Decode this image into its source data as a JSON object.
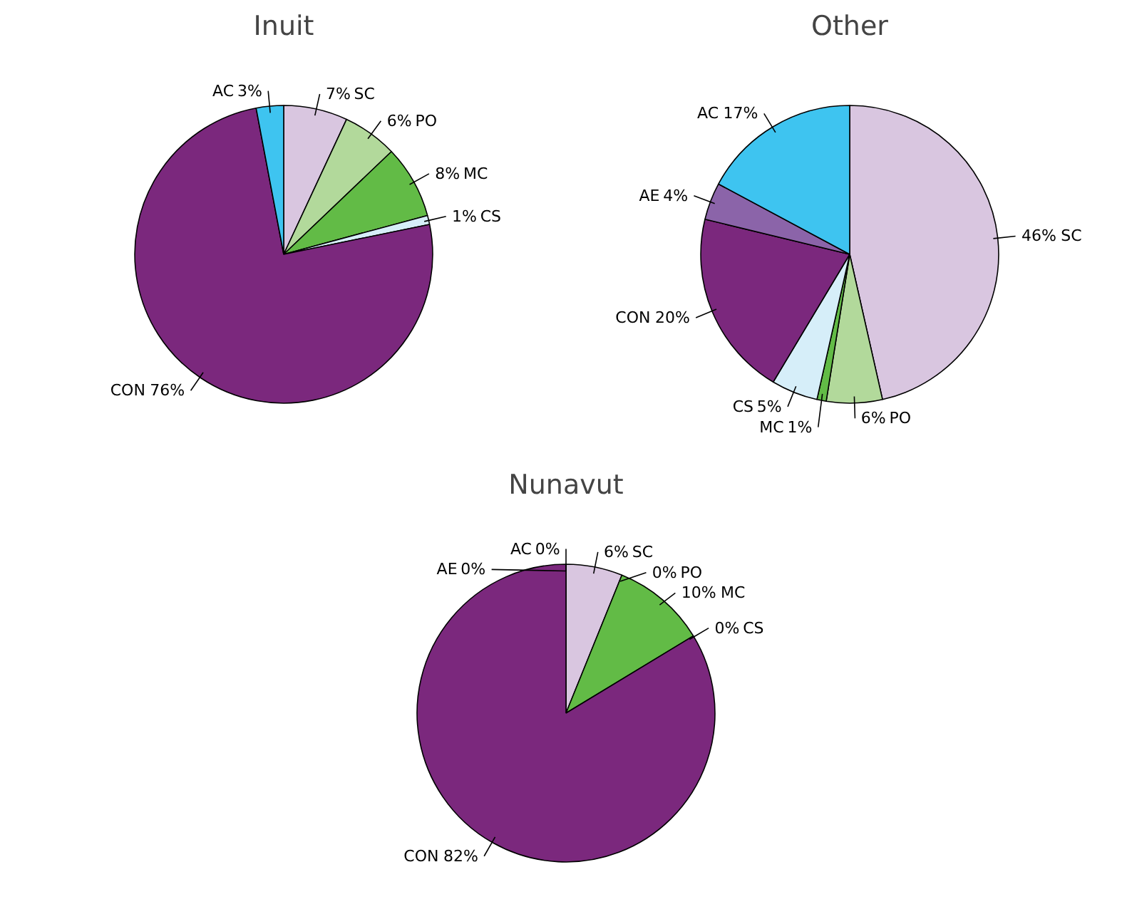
{
  "chart_data": [
    {
      "type": "pie",
      "title": "Inuit",
      "categories": [
        "SC",
        "PO",
        "MC",
        "CS",
        "CON",
        "AC"
      ],
      "values": [
        7,
        6,
        8,
        1,
        76,
        3
      ],
      "colors": [
        "#d9c6e0",
        "#b2d99b",
        "#62bb46",
        "#d6eef9",
        "#7b287d",
        "#3ec4f0"
      ],
      "value_labels": [
        "7%",
        "6%",
        "8%",
        "1%",
        "76%",
        "3%"
      ]
    },
    {
      "type": "pie",
      "title": "Other",
      "categories": [
        "SC",
        "PO",
        "MC",
        "CS",
        "CON",
        "AE",
        "AC"
      ],
      "values": [
        46,
        6,
        1,
        5,
        20,
        4,
        17
      ],
      "colors": [
        "#d9c6e0",
        "#b2d99b",
        "#62bb46",
        "#d6eef9",
        "#7b287d",
        "#8b64a9",
        "#3ec4f0"
      ],
      "value_labels": [
        "46%",
        "6%",
        "1%",
        "5%",
        "20%",
        "4%",
        "17%"
      ]
    },
    {
      "type": "pie",
      "title": "Nunavut",
      "categories": [
        "SC",
        "PO",
        "MC",
        "CS",
        "CON",
        "AE",
        "AC"
      ],
      "values": [
        6,
        0,
        10,
        0,
        82,
        0,
        0
      ],
      "colors": [
        "#d9c6e0",
        "#b2d99b",
        "#62bb46",
        "#d6eef9",
        "#7b287d",
        "#8b64a9",
        "#3ec4f0"
      ],
      "value_labels": [
        "6%",
        "0%",
        "10%",
        "0%",
        "82%",
        "0%",
        "0%"
      ]
    }
  ]
}
